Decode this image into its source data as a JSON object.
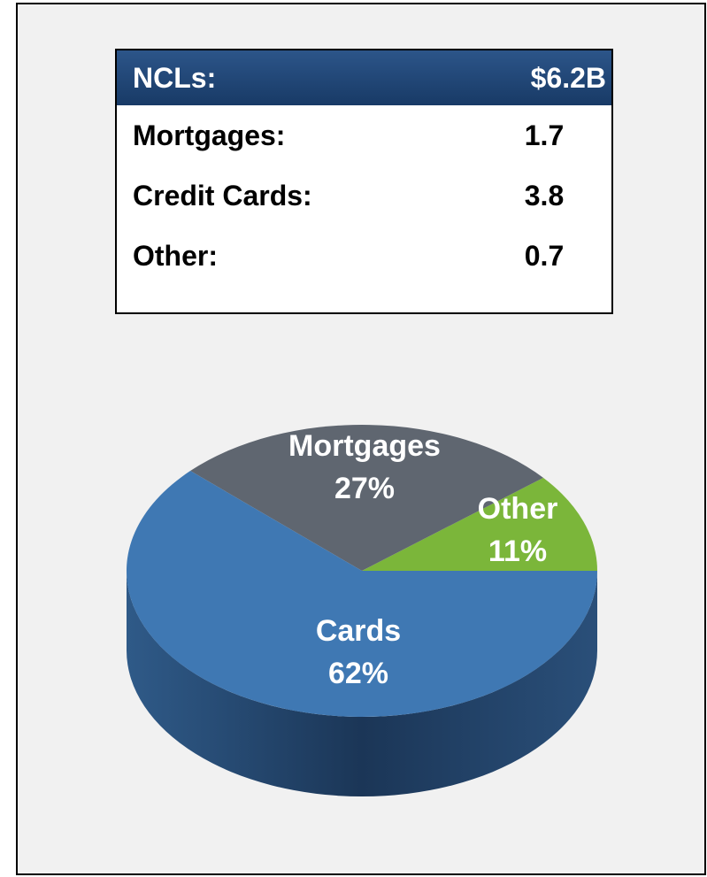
{
  "table": {
    "header": [
      "NCLs:",
      "$6.2B"
    ],
    "rows": [
      [
        "Mortgages:",
        "1.7"
      ],
      [
        "Credit Cards:",
        "3.8"
      ],
      [
        "Other:",
        "0.7"
      ]
    ]
  },
  "chart_data": {
    "type": "pie",
    "categories": [
      "Other",
      "Mortgages",
      "Cards"
    ],
    "values": [
      11,
      27,
      62
    ],
    "value_labels": [
      "11%",
      "27%",
      "62%"
    ],
    "colors": [
      "#7bb63a",
      "#5f6670",
      "#3f78b3"
    ]
  }
}
